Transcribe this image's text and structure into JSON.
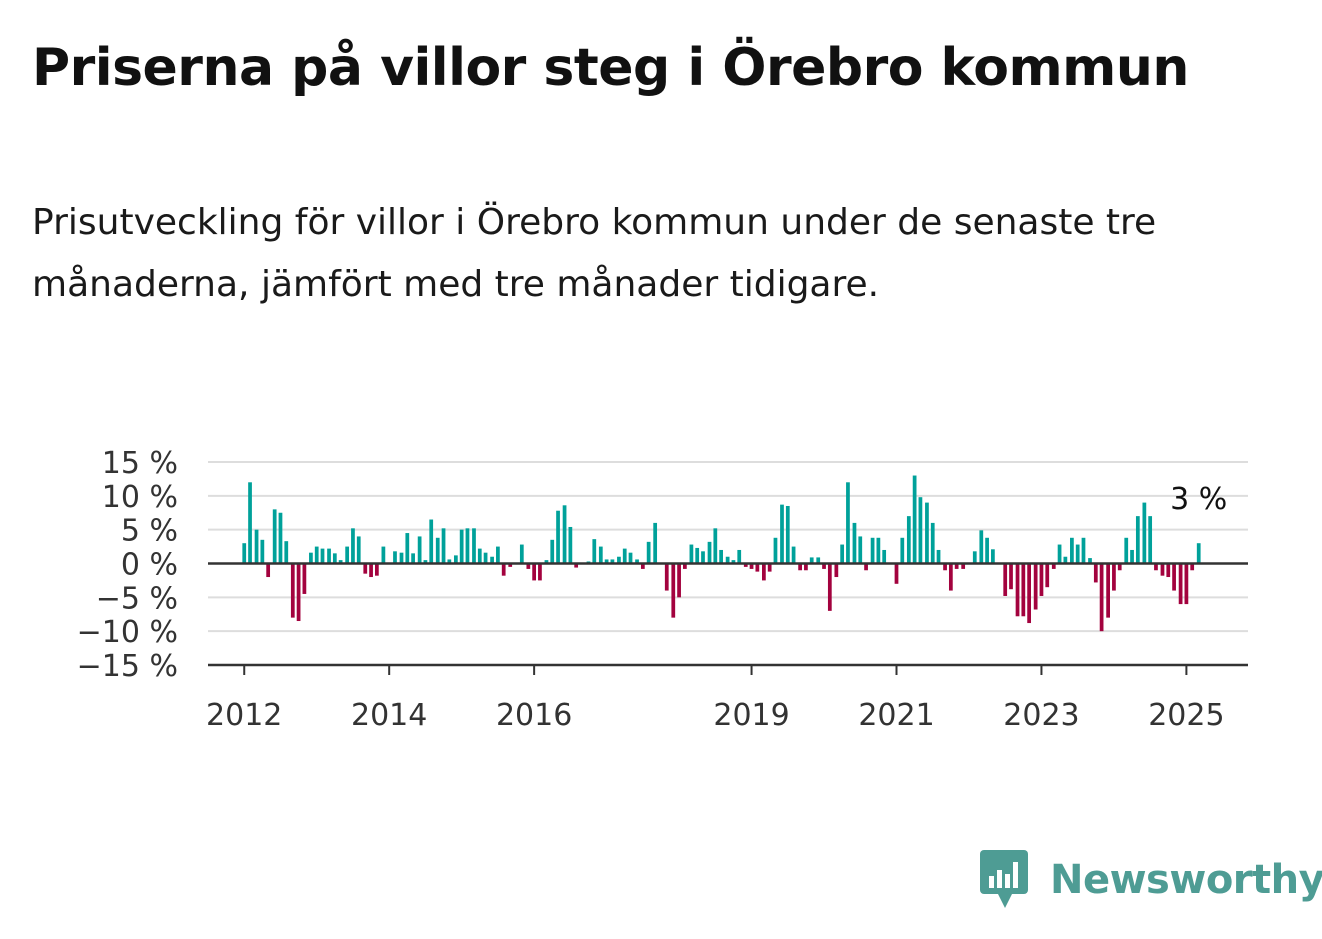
{
  "title": "Priserna på villor steg i Örebro kommun",
  "subtitle": "Prisutveckling för villor i Örebro kommun under de senaste tre månaderna, jämfört med tre månader tidigare.",
  "brand": {
    "name": "Newsworthy",
    "icon": "newsworthy-bar-chart-icon",
    "color": "#4e9c94"
  },
  "colors": {
    "positive": "#00a19a",
    "negative": "#a3023e",
    "zero_line": "#333333",
    "grid": "#dddddd"
  },
  "chart_data": {
    "type": "bar",
    "unit": "%",
    "ylim": [
      -15,
      15
    ],
    "yticks": [
      15,
      10,
      5,
      0,
      -5,
      -10,
      -15
    ],
    "ytick_labels": [
      "15 %",
      "10 %",
      "5 %",
      "0 %",
      "−5 %",
      "−10 %",
      "−15 %"
    ],
    "xlim": [
      2011.5,
      2025.85
    ],
    "xticks": [
      2012,
      2014,
      2016,
      2019,
      2021,
      2023,
      2025
    ],
    "xtick_labels": [
      "2012",
      "2014",
      "2016",
      "2019",
      "2021",
      "2023",
      "2025"
    ],
    "grid": true,
    "annotation": {
      "text": "3 %",
      "series_point": "last"
    },
    "x": [
      2012.0,
      2012.08,
      2012.17,
      2012.25,
      2012.33,
      2012.42,
      2012.5,
      2012.58,
      2012.67,
      2012.75,
      2012.83,
      2012.92,
      2013.0,
      2013.08,
      2013.17,
      2013.25,
      2013.33,
      2013.42,
      2013.5,
      2013.58,
      2013.67,
      2013.75,
      2013.83,
      2013.92,
      2014.0,
      2014.08,
      2014.17,
      2014.25,
      2014.33,
      2014.42,
      2014.5,
      2014.58,
      2014.67,
      2014.75,
      2014.83,
      2014.92,
      2015.0,
      2015.08,
      2015.17,
      2015.25,
      2015.33,
      2015.42,
      2015.5,
      2015.58,
      2015.67,
      2015.75,
      2015.83,
      2015.92,
      2016.0,
      2016.08,
      2016.17,
      2016.25,
      2016.33,
      2016.42,
      2016.5,
      2016.58,
      2016.67,
      2016.75,
      2016.83,
      2016.92,
      2017.0,
      2017.08,
      2017.17,
      2017.25,
      2017.33,
      2017.42,
      2017.5,
      2017.58,
      2017.67,
      2017.75,
      2017.83,
      2017.92,
      2018.0,
      2018.08,
      2018.17,
      2018.25,
      2018.33,
      2018.42,
      2018.5,
      2018.58,
      2018.67,
      2018.75,
      2018.83,
      2018.92,
      2019.0,
      2019.08,
      2019.17,
      2019.25,
      2019.33,
      2019.42,
      2019.5,
      2019.58,
      2019.67,
      2019.75,
      2019.83,
      2019.92,
      2020.0,
      2020.08,
      2020.17,
      2020.25,
      2020.33,
      2020.42,
      2020.5,
      2020.58,
      2020.67,
      2020.75,
      2020.83,
      2020.92,
      2021.0,
      2021.08,
      2021.17,
      2021.25,
      2021.33,
      2021.42,
      2021.5,
      2021.58,
      2021.67,
      2021.75,
      2021.83,
      2021.92,
      2022.0,
      2022.08,
      2022.17,
      2022.25,
      2022.33,
      2022.42,
      2022.5,
      2022.58,
      2022.67,
      2022.75,
      2022.83,
      2022.92,
      2023.0,
      2023.08,
      2023.17,
      2023.25,
      2023.33,
      2023.42,
      2023.5,
      2023.58,
      2023.67,
      2023.75,
      2023.83,
      2023.92,
      2024.0,
      2024.08,
      2024.17,
      2024.25,
      2024.33,
      2024.42,
      2024.5,
      2024.58,
      2024.67,
      2024.75,
      2024.83,
      2024.92,
      2025.0,
      2025.08,
      2025.17
    ],
    "values": [
      3,
      12,
      5,
      3.5,
      -2,
      8,
      7.5,
      3.3,
      -8,
      -8.5,
      -4.5,
      1.6,
      2.5,
      2.2,
      2.2,
      1.5,
      0.5,
      2.5,
      5.2,
      4,
      -1.5,
      -2,
      -1.8,
      2.5,
      0,
      1.8,
      1.6,
      4.5,
      1.5,
      4,
      0.5,
      6.5,
      3.8,
      5.2,
      0.6,
      1.2,
      5,
      5.2,
      5.2,
      2.2,
      1.6,
      1,
      2.5,
      -1.8,
      -0.5,
      0,
      2.8,
      -0.8,
      -2.5,
      -2.5,
      0.5,
      3.5,
      7.8,
      8.6,
      5.4,
      -0.6,
      0,
      0.3,
      3.6,
      2.5,
      0.6,
      0.6,
      1,
      2.2,
      1.6,
      0.6,
      -0.8,
      3.2,
      6,
      0,
      -4,
      -8,
      -5,
      -0.8,
      2.8,
      2.3,
      1.8,
      3.2,
      5.2,
      2,
      1,
      0.5,
      2,
      -0.5,
      -0.8,
      -1.2,
      -2.5,
      -1.2,
      3.8,
      8.7,
      8.5,
      2.5,
      -1,
      -1,
      0.9,
      0.9,
      -0.8,
      -7,
      -2,
      2.8,
      12,
      6,
      4,
      -1,
      3.8,
      3.8,
      2,
      0,
      -3,
      3.8,
      7,
      13,
      9.8,
      9,
      6,
      2,
      -1,
      -4,
      -0.8,
      -0.8,
      0,
      1.8,
      4.9,
      3.8,
      2.1,
      0,
      -4.8,
      -3.8,
      -7.8,
      -7.8,
      -8.8,
      -6.8,
      -4.8,
      -3.5,
      -0.8,
      2.8,
      1,
      3.8,
      2.8,
      3.8,
      0.8,
      -2.8,
      -10,
      -8,
      -4,
      -1,
      3.8,
      2,
      7,
      9,
      7,
      -1,
      -1.8,
      -2,
      -4,
      -6,
      -6,
      -1,
      3
    ]
  }
}
